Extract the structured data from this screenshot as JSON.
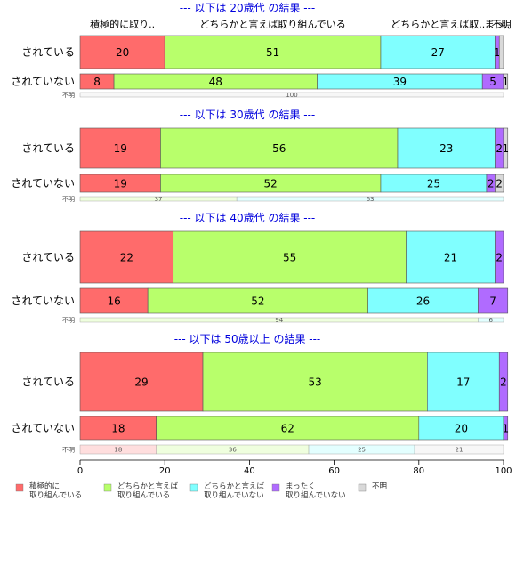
{
  "chart_data": {
    "type": "bar",
    "orientation": "horizontal-stacked-percent",
    "xlim": [
      0,
      100
    ],
    "x_ticks": [
      "0",
      "20",
      "40",
      "60",
      "80",
      "100"
    ],
    "categories": [
      {
        "key": "c1",
        "label": "積極的に取り組んでいる",
        "legend_lines": [
          "積極的に",
          "取り組んでいる"
        ],
        "color": "#ff6b6b"
      },
      {
        "key": "c2",
        "label": "どちらかと言えば取り組んでいる",
        "legend_lines": [
          "どちらかと言えば",
          "取り組んでいる"
        ],
        "color": "#b8ff6b"
      },
      {
        "key": "c3",
        "label": "どちらかと言えば取り組んでいない",
        "legend_lines": [
          "どちらかと言えば",
          "取り組んでいない"
        ],
        "color": "#80ffff"
      },
      {
        "key": "c4",
        "label": "まったく取り組んでいない",
        "legend_lines": [
          "まったく",
          "取り組んでいない"
        ],
        "color": "#b06bff"
      },
      {
        "key": "c5",
        "label": "不明",
        "legend_lines": [
          "不明"
        ],
        "color": "#d9d9d9"
      }
    ],
    "panels": [
      {
        "title": "--- 以下は 20歳代 の結果 ---",
        "header_labels": [
          "積極的に取り..",
          "どちらかと言えば取り組んでいる",
          "どちらかと言えば取..",
          "まっ..",
          "不明"
        ],
        "rows": [
          {
            "label": "されている",
            "values": [
              20,
              51,
              27,
              1,
              1
            ],
            "shown": [
              "20",
              "51",
              "27",
              "1",
              ""
            ]
          },
          {
            "label": "されていない",
            "values": [
              8,
              48,
              39,
              5,
              1
            ],
            "shown": [
              "8",
              "48",
              "39",
              "5",
              "1"
            ]
          },
          {
            "label": "不明",
            "values": [
              0,
              0,
              0,
              0,
              100
            ],
            "shown": [
              "",
              "",
              "",
              "",
              "100"
            ]
          }
        ]
      },
      {
        "title": "--- 以下は 30歳代 の結果 ---",
        "rows": [
          {
            "label": "されている",
            "values": [
              19,
              56,
              23,
              2,
              1
            ],
            "shown": [
              "19",
              "56",
              "23",
              "2",
              "1"
            ]
          },
          {
            "label": "されていない",
            "values": [
              19,
              52,
              25,
              2,
              2
            ],
            "shown": [
              "19",
              "52",
              "25",
              "2",
              "2"
            ]
          },
          {
            "label": "不明",
            "values": [
              0,
              37,
              63,
              0,
              0
            ],
            "shown": [
              "",
              "37",
              "63",
              "",
              ""
            ]
          }
        ]
      },
      {
        "title": "--- 以下は 40歳代 の結果 ---",
        "rows": [
          {
            "label": "されている",
            "values": [
              22,
              55,
              21,
              2,
              0
            ],
            "shown": [
              "22",
              "55",
              "21",
              "2",
              ""
            ]
          },
          {
            "label": "されていない",
            "values": [
              16,
              52,
              26,
              7,
              0
            ],
            "shown": [
              "16",
              "52",
              "26",
              "7",
              ""
            ]
          },
          {
            "label": "不明",
            "values": [
              0,
              94,
              6,
              0,
              0
            ],
            "shown": [
              "",
              "94",
              "6",
              "",
              ""
            ]
          }
        ]
      },
      {
        "title": "--- 以下は 50歳以上 の結果 ---",
        "rows": [
          {
            "label": "されている",
            "values": [
              29,
              53,
              17,
              2,
              0
            ],
            "shown": [
              "29",
              "53",
              "17",
              "2",
              ""
            ]
          },
          {
            "label": "されていない",
            "values": [
              18,
              62,
              20,
              1,
              0
            ],
            "shown": [
              "18",
              "62",
              "20",
              "1",
              ""
            ]
          },
          {
            "label": "不明",
            "values": [
              18,
              36,
              25,
              0,
              21
            ],
            "shown": [
              "18",
              "36",
              "25",
              "",
              "21"
            ]
          }
        ]
      }
    ]
  }
}
